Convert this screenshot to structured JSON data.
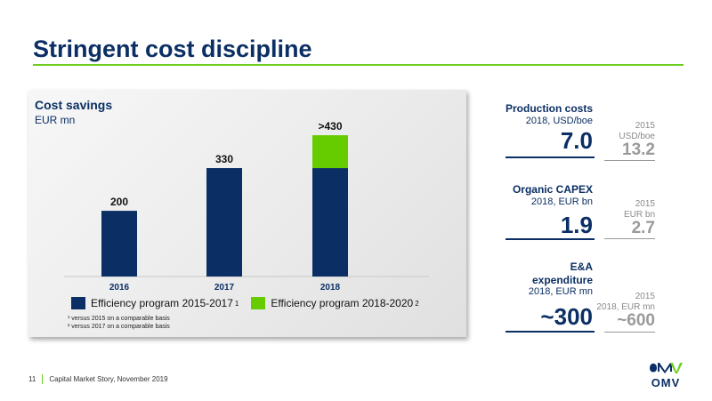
{
  "page": {
    "title": "Stringent cost discipline",
    "footer_page": "11",
    "footer_text": "Capital Market Story, November 2019",
    "logo_text": "OMV"
  },
  "chart_panel": {
    "title": "Cost savings",
    "subtitle": "EUR mn",
    "legend": [
      {
        "label": "Efficiency program 2015-2017",
        "note": "1",
        "color": "#0b2f64"
      },
      {
        "label": "Efficiency program 2018-2020",
        "note": "2",
        "color": "#66cc00"
      }
    ],
    "footnotes": [
      "¹ versus 2015 on a comparable basis",
      "² versus 2017 on a comparable basis"
    ]
  },
  "chart_data": {
    "type": "bar",
    "title": "Cost savings",
    "ylabel": "EUR mn",
    "categories": [
      "2016",
      "2017",
      "2018"
    ],
    "series": [
      {
        "name": "Efficiency program 2015-2017",
        "values": [
          200,
          330,
          330
        ]
      },
      {
        "name": "Efficiency program 2018-2020",
        "values": [
          0,
          0,
          100
        ]
      }
    ],
    "data_labels": [
      "200",
      "330",
      ">430"
    ],
    "ylim": [
      0,
      460
    ],
    "grid": false,
    "stacked": true
  },
  "kpis": [
    {
      "title": "Production costs",
      "unit": "2018, USD/boe",
      "value": "7.0",
      "cmp_year": "2015",
      "cmp_unit": "USD/boe",
      "cmp_value": "13.2"
    },
    {
      "title": "Organic CAPEX",
      "unit": "2018, EUR bn",
      "value": "1.9",
      "cmp_year": "2015",
      "cmp_unit": "EUR bn",
      "cmp_value": "2.7"
    },
    {
      "title_lines": [
        "E&A",
        "expenditure"
      ],
      "unit": "2018, EUR mn",
      "value": "~300",
      "cmp_year": "2015",
      "cmp_unit": "2018, EUR mn",
      "cmp_value": "~600"
    }
  ],
  "colors": {
    "navy": "#0b2f64",
    "green": "#66cc00",
    "accent_line": "#6ccf1f"
  }
}
